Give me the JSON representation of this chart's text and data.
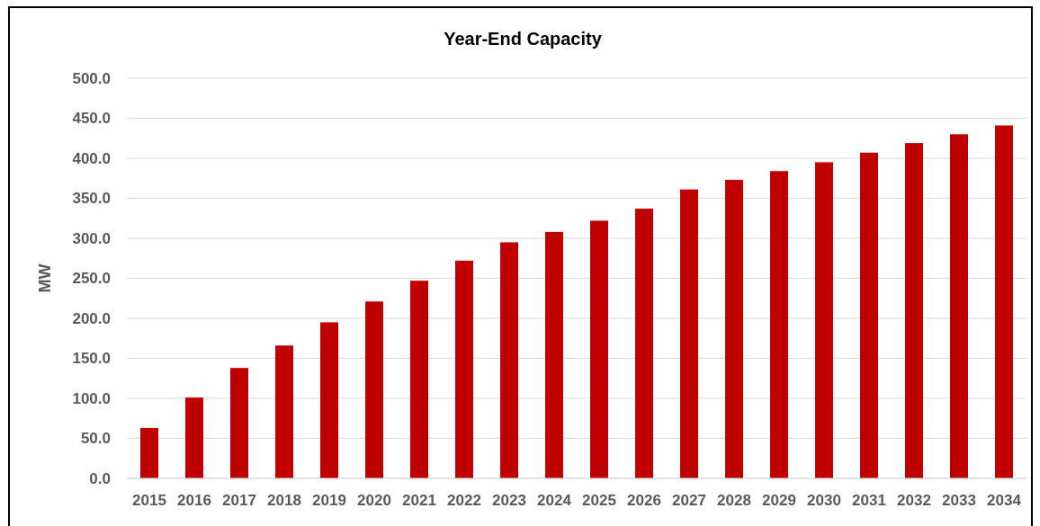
{
  "chart_data": {
    "type": "bar",
    "title": "Year-End Capacity",
    "ylabel": "MW",
    "categories": [
      "2015",
      "2016",
      "2017",
      "2018",
      "2019",
      "2020",
      "2021",
      "2022",
      "2023",
      "2024",
      "2025",
      "2026",
      "2027",
      "2028",
      "2029",
      "2030",
      "2031",
      "2032",
      "2033",
      "2034"
    ],
    "values": [
      63,
      101,
      138,
      166,
      195,
      221,
      247,
      272,
      295,
      308,
      322,
      337,
      361,
      373,
      384,
      395,
      407,
      419,
      430,
      441
    ],
    "color": "#c00000",
    "ylim": [
      0,
      500
    ],
    "yticks": [
      {
        "value": 0,
        "label": "0.0"
      },
      {
        "value": 50,
        "label": "50.0"
      },
      {
        "value": 100,
        "label": "100.0"
      },
      {
        "value": 150,
        "label": "150.0"
      },
      {
        "value": 200,
        "label": "200.0"
      },
      {
        "value": 250,
        "label": "250.0"
      },
      {
        "value": 300,
        "label": "300.0"
      },
      {
        "value": 350,
        "label": "350.0"
      },
      {
        "value": 400,
        "label": "400.0"
      },
      {
        "value": 450,
        "label": "450.0"
      },
      {
        "value": 500,
        "label": "500.0"
      }
    ],
    "grid": "y"
  }
}
